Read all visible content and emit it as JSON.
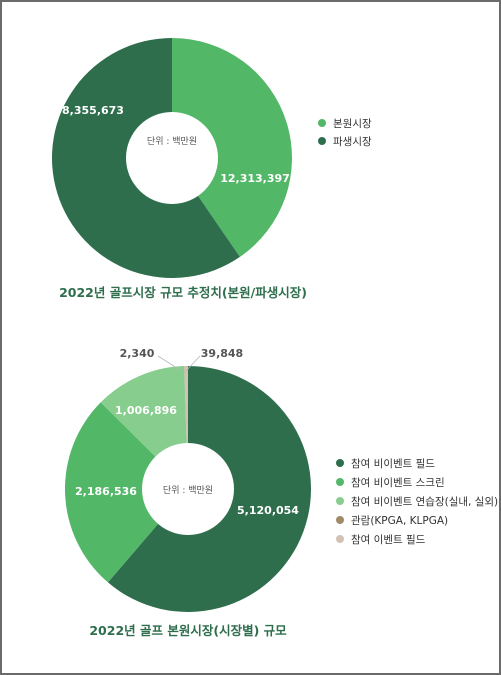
{
  "chart_data": [
    {
      "type": "pie",
      "title": "2022년 골프시장 규모 추정치(본원/파생시장)",
      "center_label": "단위 : 백만원",
      "categories": [
        "본원시장",
        "파생시장"
      ],
      "values": [
        8355673,
        12313397
      ],
      "value_labels": [
        "8,355,673",
        "12,313,397"
      ],
      "colors": [
        "#52b767",
        "#2e6e4d"
      ],
      "legend_position": "right"
    },
    {
      "type": "pie",
      "title": "2022년 골프 본원시장(시장별) 규모",
      "center_label": "단위 : 백만원",
      "categories": [
        "참여 비이벤트 필드",
        "참여 비이벤트 스크린",
        "참여 비이벤트 연습장(실내, 실외)",
        "관람(KPGA, KLPGA)",
        "참여 이벤트 필드"
      ],
      "values": [
        5120054,
        2186536,
        1006896,
        2340,
        39848
      ],
      "value_labels": [
        "5,120,054",
        "2,186,536",
        "1,006,896",
        "2,340",
        "39,848"
      ],
      "colors": [
        "#2e6e4d",
        "#52b767",
        "#86cd8e",
        "#a08a68",
        "#d3c2b3"
      ],
      "legend_position": "right"
    }
  ],
  "colors": {
    "title": "#2e6e4d",
    "frame": "#6b6b6b"
  }
}
